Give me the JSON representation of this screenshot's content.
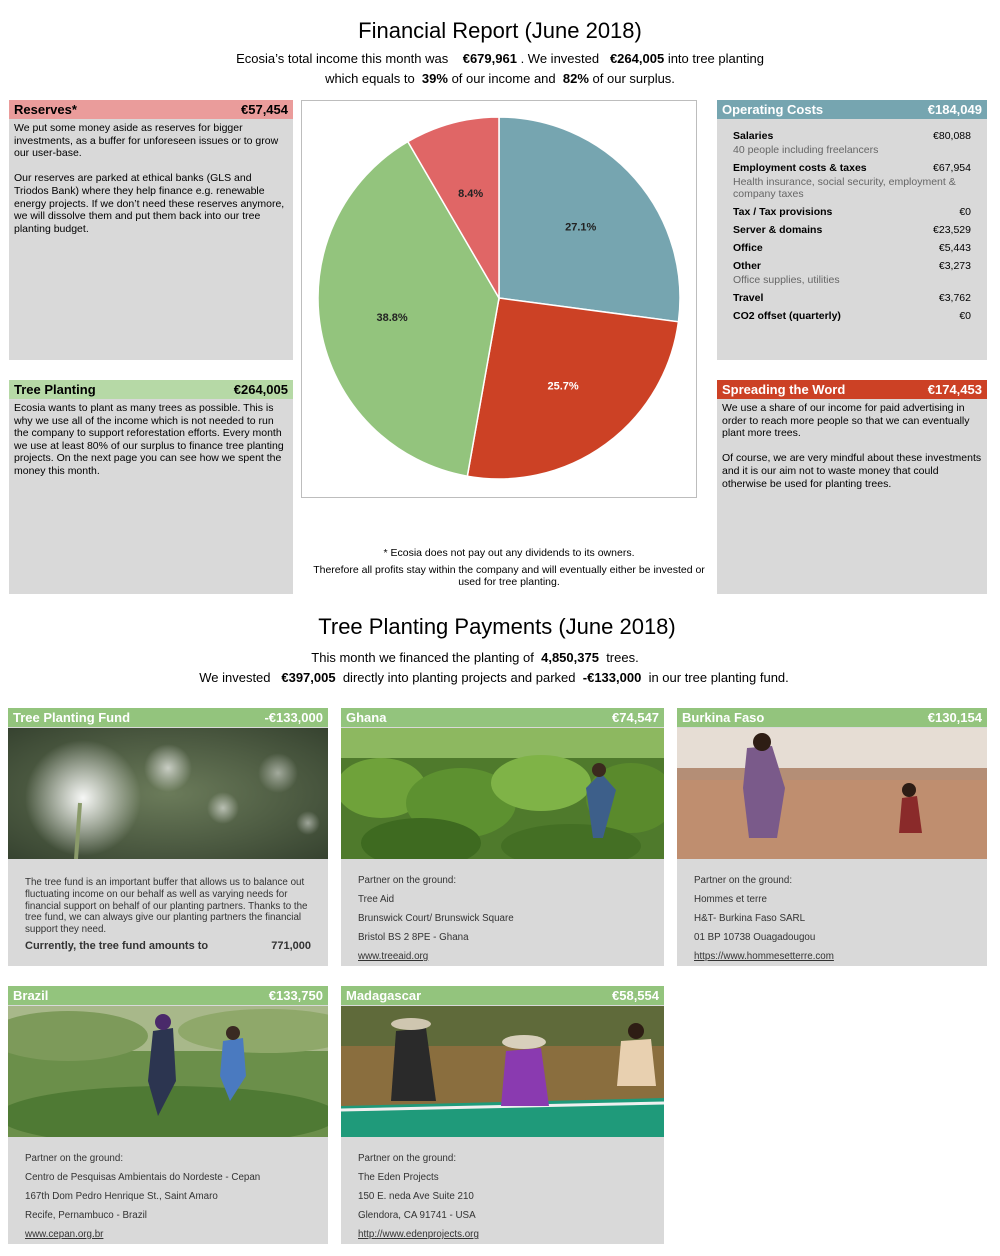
{
  "report": {
    "title": "Financial Report (June 2018)",
    "line1_a": "Ecosia’s total income this month was",
    "line1_income": "€679,961",
    "line1_b": ". We invested",
    "line1_invested": "€264,005",
    "line1_c": "into tree planting",
    "line2_a": "which equals to",
    "line2_pct_income": "39%",
    "line2_b": "of our income and",
    "line2_pct_surplus": "82%",
    "line2_c": "of our surplus."
  },
  "reserves": {
    "title": "Reserves*",
    "amount": "€57,454",
    "p1": "We put some money aside as reserves for bigger investments, as a buffer for unforeseen issues or to grow our user-base.",
    "p2": "Our reserves are parked at ethical banks (GLS and Triodos Bank) where they help finance e.g. renewable energy projects. If we don’t need these reserves anymore, we will dissolve them and put them back into our tree planting budget."
  },
  "tree_planting": {
    "title": "Tree Planting",
    "amount": "€264,005",
    "p1": "Ecosia wants to plant as many trees as possible. This is why we use all of the income which is not needed to run the company to support reforestation efforts. Every month we use at least 80% of our surplus to finance tree planting projects. On the next page you can see how we spent the money this month."
  },
  "operating_costs": {
    "title": "Operating Costs",
    "amount": "€184,049",
    "items": [
      {
        "label": "Salaries",
        "value": "€80,088",
        "note": "40 people including freelancers"
      },
      {
        "label": "Employment costs & taxes",
        "value": "€67,954",
        "note": "Health insurance, social security, employment & company taxes"
      },
      {
        "label": "Tax / Tax provisions",
        "value": "€0",
        "note": ""
      },
      {
        "label": "Server & domains",
        "value": "€23,529",
        "note": ""
      },
      {
        "label": "Office",
        "value": "€5,443",
        "note": ""
      },
      {
        "label": "Other",
        "value": "€3,273",
        "note": "Office supplies, utilities"
      },
      {
        "label": "Travel",
        "value": "€3,762",
        "note": ""
      },
      {
        "label": "CO2 offset (quarterly)",
        "value": "€0",
        "note": ""
      }
    ]
  },
  "spreading": {
    "title": "Spreading the Word",
    "amount": "€174,453",
    "p1": "We use a share of our income for paid advertising in order to reach more people so that we can eventually plant more trees.",
    "p2": "Of course, we are very mindful about these investments and it is our aim not to waste money that could otherwise be used for planting trees."
  },
  "chart_data": {
    "type": "pie",
    "slices": [
      {
        "label": "27.1%",
        "value": 27.1,
        "color": "#76a5b0"
      },
      {
        "label": "25.7%",
        "value": 25.7,
        "color": "#cc4125"
      },
      {
        "label": "38.8%",
        "value": 38.8,
        "color": "#93c47d"
      },
      {
        "label": "8.4%",
        "value": 8.4,
        "color": "#e06666"
      }
    ]
  },
  "footnote": {
    "line1": "* Ecosia does not pay out any dividends to its owners.",
    "line2": "Therefore all profits stay within the company and will eventually either be invested or used for tree planting."
  },
  "payments": {
    "title": "Tree Planting Payments (June 2018)",
    "line1_a": "This month we financed the planting of",
    "line1_trees": "4,850,375",
    "line1_b": "trees.",
    "line2_a": "We invested",
    "line2_amount": "€397,005",
    "line2_b": "directly into planting projects and parked",
    "line2_parked": "-€133,000",
    "line2_c": "in our tree planting fund."
  },
  "fund": {
    "title": "Tree Planting Fund",
    "amount": "-€133,000",
    "text": "The tree fund is an important buffer that allows us to balance out fluctuating income on our behalf as well as varying needs for financial support on behalf of our planting partners. Thanks to the tree fund, we can always give our planting partners the financial support they need.",
    "total_label": "Currently, the tree fund amounts to",
    "total_value": "771,000"
  },
  "ghana": {
    "title": "Ghana",
    "amount": "€74,547",
    "lines": [
      "Partner on the ground:",
      "Tree Aid",
      "Brunswick Court/ Brunswick Square",
      "Bristol BS 2 8PE - Ghana"
    ],
    "link": "www.treeaid.org"
  },
  "burkina": {
    "title": "Burkina Faso",
    "amount": "€130,154",
    "lines": [
      "Partner on the ground:",
      "Hommes et terre",
      "H&T- Burkina Faso SARL",
      "01 BP 10738 Ouagadougou"
    ],
    "link": "https://www.hommesetterre.com"
  },
  "brazil": {
    "title": "Brazil",
    "amount": "€133,750",
    "lines": [
      "Partner on the ground:",
      "Centro de Pesquisas Ambientais do Nordeste - Cepan",
      "167th Dom Pedro Henrique St., Saint Amaro",
      "Recife, Pernambuco - Brazil"
    ],
    "link": "www.cepan.org.br"
  },
  "madagascar": {
    "title": "Madagascar",
    "amount": "€58,554",
    "lines": [
      "Partner on the ground:",
      "The Eden Projects",
      "150 E. neda Ave Suite 210",
      "Glendora, CA 91741 - USA"
    ],
    "link": "http://www.edenprojects.org"
  }
}
